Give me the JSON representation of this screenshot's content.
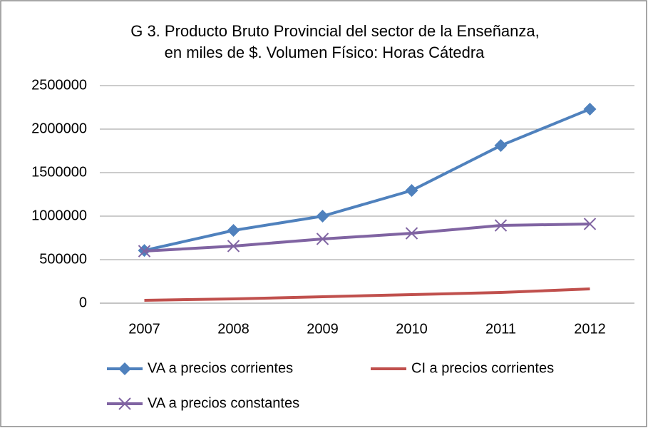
{
  "chart_data": {
    "type": "line",
    "title": [
      "G 3. Producto Bruto Provincial del sector de  la Enseñanza,",
      "en miles de $.  Volumen Físico: Horas Cátedra"
    ],
    "categories": [
      "2007",
      "2008",
      "2009",
      "2010",
      "2011",
      "2012"
    ],
    "series": [
      {
        "name": "VA a precios corrientes",
        "color": "#4f81bd",
        "marker": "diamond",
        "values": [
          606000,
          836000,
          1000000,
          1295000,
          1811000,
          2230000
        ]
      },
      {
        "name": "CI a precios corrientes",
        "color": "#c0504d",
        "marker": "none",
        "values": [
          33000,
          49000,
          74000,
          98000,
          123000,
          164000
        ]
      },
      {
        "name": "VA a precios constantes",
        "color": "#8064a2",
        "marker": "x",
        "values": [
          598000,
          656000,
          738000,
          803000,
          893000,
          910000
        ]
      }
    ],
    "ylim": [
      0,
      2500000
    ],
    "yticks": [
      0,
      500000,
      1000000,
      1500000,
      2000000,
      2500000
    ],
    "grid": true,
    "legend": "bottom"
  }
}
